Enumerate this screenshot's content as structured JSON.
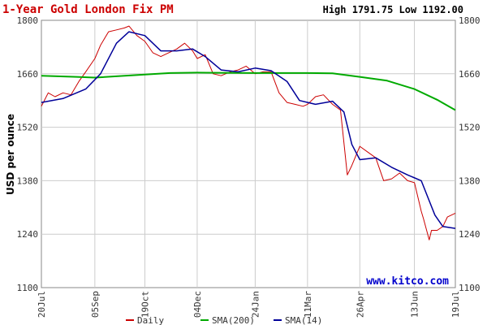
{
  "header": {
    "title": "1-Year Gold London Fix PM",
    "high_low": "High 1791.75 Low 1192.00"
  },
  "watermark": "www.kitco.com",
  "chart_data": {
    "type": "line",
    "title": "1-Year Gold London Fix PM",
    "ylabel": "USD per ounce",
    "xlabel": "",
    "ylim": [
      1100,
      1800
    ],
    "y_ticks": [
      1100,
      1240,
      1380,
      1520,
      1660,
      1800
    ],
    "y_tick_labels": [
      "1100",
      "1240",
      "1380",
      "1520",
      "1660",
      "1800"
    ],
    "x_tick_labels": [
      "20Jul",
      "05Sep",
      "19Oct",
      "04Dec",
      "24Jan",
      "11Mar",
      "26Apr",
      "13Jun",
      "19Jul"
    ],
    "x_range": [
      "2012-07-20",
      "2013-07-19"
    ],
    "grid": true,
    "legend_position": "bottom",
    "colors": {
      "daily": "#cc0000",
      "sma200": "#00aa00",
      "sma14": "#000099",
      "grid": "#cccccc",
      "title": "#cc0000",
      "watermark": "#0000cc"
    },
    "series": [
      {
        "name": "Daily",
        "x": [
          "2012-07-20",
          "2012-07-26",
          "2012-08-01",
          "2012-08-08",
          "2012-08-15",
          "2012-08-22",
          "2012-08-28",
          "2012-09-05",
          "2012-09-10",
          "2012-09-17",
          "2012-09-24",
          "2012-10-01",
          "2012-10-05",
          "2012-10-12",
          "2012-10-19",
          "2012-10-26",
          "2012-11-02",
          "2012-11-09",
          "2012-11-16",
          "2012-11-23",
          "2012-11-30",
          "2012-12-04",
          "2012-12-11",
          "2012-12-18",
          "2012-12-25",
          "2013-01-02",
          "2013-01-09",
          "2013-01-16",
          "2013-01-24",
          "2013-01-31",
          "2013-02-07",
          "2013-02-14",
          "2013-02-21",
          "2013-02-28",
          "2013-03-07",
          "2013-03-11",
          "2013-03-18",
          "2013-03-25",
          "2013-04-02",
          "2013-04-09",
          "2013-04-12",
          "2013-04-15",
          "2013-04-19",
          "2013-04-26",
          "2013-05-03",
          "2013-05-10",
          "2013-05-17",
          "2013-05-24",
          "2013-05-31",
          "2013-06-07",
          "2013-06-13",
          "2013-06-19",
          "2013-06-21",
          "2013-06-26",
          "2013-06-28",
          "2013-07-03",
          "2013-07-08",
          "2013-07-12",
          "2013-07-19"
        ],
        "values": [
          1575,
          1610,
          1600,
          1610,
          1605,
          1640,
          1665,
          1700,
          1735,
          1770,
          1775,
          1780,
          1785,
          1760,
          1745,
          1715,
          1705,
          1715,
          1725,
          1740,
          1720,
          1700,
          1710,
          1660,
          1655,
          1665,
          1670,
          1680,
          1660,
          1665,
          1665,
          1610,
          1585,
          1580,
          1575,
          1580,
          1600,
          1605,
          1580,
          1565,
          1480,
          1395,
          1420,
          1470,
          1455,
          1440,
          1380,
          1385,
          1400,
          1380,
          1375,
          1300,
          1280,
          1225,
          1250,
          1250,
          1260,
          1285,
          1295
        ]
      },
      {
        "name": "SMA(200)",
        "x": [
          "2012-07-20",
          "2012-08-20",
          "2012-09-05",
          "2012-10-19",
          "2012-11-10",
          "2012-12-04",
          "2013-01-24",
          "2013-03-11",
          "2013-04-02",
          "2013-04-26",
          "2013-05-20",
          "2013-06-13",
          "2013-07-03",
          "2013-07-19"
        ],
        "values": [
          1655,
          1652,
          1650,
          1658,
          1662,
          1663,
          1662,
          1662,
          1661,
          1652,
          1642,
          1620,
          1592,
          1565
        ]
      },
      {
        "name": "SMA(14)",
        "x": [
          "2012-07-20",
          "2012-08-08",
          "2012-08-28",
          "2012-09-10",
          "2012-09-24",
          "2012-10-05",
          "2012-10-19",
          "2012-11-02",
          "2012-11-16",
          "2012-11-30",
          "2012-12-11",
          "2012-12-25",
          "2013-01-09",
          "2013-01-24",
          "2013-02-07",
          "2013-02-21",
          "2013-03-04",
          "2013-03-18",
          "2013-04-02",
          "2013-04-12",
          "2013-04-19",
          "2013-04-26",
          "2013-05-10",
          "2013-05-24",
          "2013-06-07",
          "2013-06-19",
          "2013-07-01",
          "2013-07-08",
          "2013-07-19"
        ],
        "values": [
          1585,
          1595,
          1620,
          1660,
          1740,
          1770,
          1760,
          1720,
          1720,
          1725,
          1705,
          1670,
          1665,
          1675,
          1668,
          1640,
          1590,
          1580,
          1588,
          1560,
          1475,
          1435,
          1440,
          1415,
          1395,
          1380,
          1290,
          1260,
          1255
        ]
      }
    ]
  }
}
